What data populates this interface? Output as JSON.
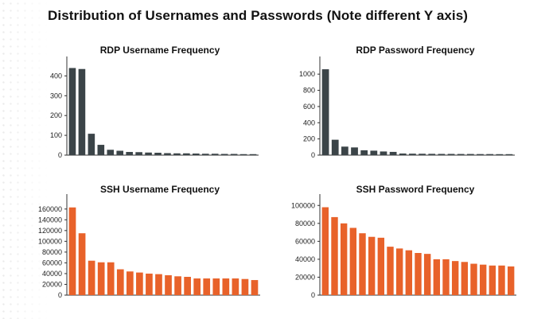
{
  "page": {
    "title": "Distribution of Usernames and Passwords (Note different Y axis)"
  },
  "chart_data": [
    {
      "type": "bar",
      "title": "RDP Username Frequency",
      "color": "#3b4448",
      "ylim": [
        0,
        450
      ],
      "yticks": [
        0,
        100,
        200,
        300,
        400
      ],
      "tick_labels": [
        "0",
        "100",
        "200",
        "300",
        "400"
      ],
      "values": [
        440,
        435,
        108,
        52,
        27,
        22,
        16,
        15,
        13,
        12,
        10,
        9,
        9,
        8,
        7,
        7,
        6,
        6,
        5,
        5
      ],
      "grid": false
    },
    {
      "type": "bar",
      "title": "RDP Password Frequency",
      "color": "#3b4448",
      "ylim": [
        0,
        1100
      ],
      "yticks": [
        0,
        200,
        400,
        600,
        800,
        1000
      ],
      "tick_labels": [
        "0",
        "200",
        "400",
        "600",
        "800",
        "1000"
      ],
      "values": [
        1060,
        190,
        105,
        95,
        60,
        55,
        45,
        40,
        20,
        18,
        17,
        16,
        15,
        15,
        14,
        14,
        13,
        13,
        12,
        12
      ],
      "grid": false
    },
    {
      "type": "bar",
      "title": "SSH Username Frequency",
      "color": "#e8622a",
      "ylim": [
        0,
        170000
      ],
      "yticks": [
        0,
        20000,
        40000,
        60000,
        80000,
        100000,
        120000,
        140000,
        160000
      ],
      "tick_labels": [
        "0",
        "20000",
        "40000",
        "60000",
        "80000",
        "100000",
        "120000",
        "140000",
        "160000"
      ],
      "values": [
        163000,
        115000,
        64000,
        61000,
        61000,
        48000,
        44000,
        42000,
        40000,
        39000,
        37000,
        35000,
        34000,
        31000,
        31000,
        31000,
        31000,
        31000,
        30000,
        28000
      ],
      "grid": false
    },
    {
      "type": "bar",
      "title": "SSH Password Frequency",
      "color": "#e8622a",
      "ylim": [
        0,
        102000
      ],
      "yticks": [
        0,
        20000,
        40000,
        60000,
        80000,
        100000
      ],
      "tick_labels": [
        "0",
        "20000",
        "40000",
        "60000",
        "80000",
        "100000"
      ],
      "values": [
        98000,
        87000,
        80000,
        75000,
        69000,
        65000,
        64000,
        54000,
        52000,
        50000,
        47000,
        46000,
        40000,
        40000,
        38000,
        37000,
        35000,
        34000,
        33000,
        33000,
        32000
      ],
      "grid": false
    }
  ]
}
